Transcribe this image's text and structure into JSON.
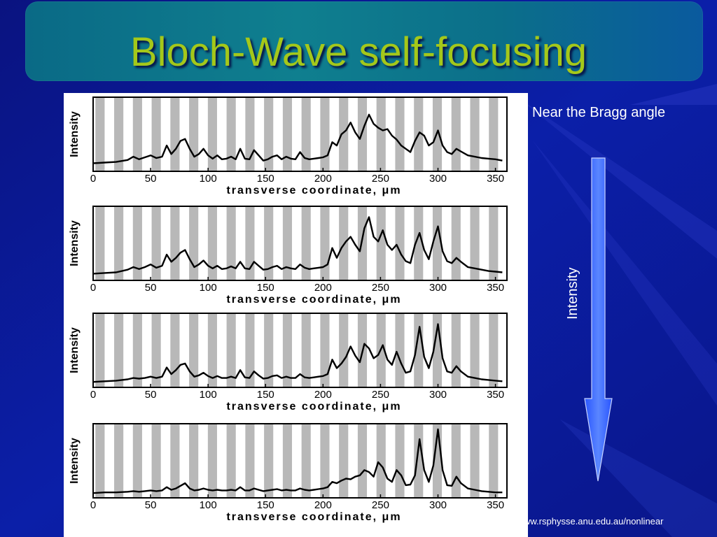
{
  "slide": {
    "title": "Bloch-Wave self-focusing",
    "caption": "Near the Bragg angle",
    "arrow_label": "Intensity",
    "url_text": "ww.rsphysse.anu.edu.au/nonlinear"
  },
  "colors": {
    "background": "#0a1a9c",
    "title_bar": "#0b7a8c",
    "title_text": "#a4c81a",
    "arrow": "#3a66ff"
  },
  "chart_data": [
    {
      "type": "line",
      "ylabel": "Intensity",
      "xlabel": "transverse coordinate, μm",
      "xticks": [
        "0",
        "50",
        "100",
        "150",
        "200",
        "250",
        "300",
        "350"
      ],
      "xlim": [
        0,
        360
      ],
      "ylim": [
        0,
        1
      ],
      "grid": "alternating gray stripes",
      "x": [
        0,
        10,
        20,
        30,
        35,
        40,
        45,
        50,
        55,
        60,
        64,
        68,
        72,
        76,
        80,
        84,
        88,
        92,
        96,
        100,
        104,
        108,
        112,
        116,
        120,
        124,
        128,
        132,
        136,
        140,
        144,
        148,
        152,
        156,
        160,
        164,
        168,
        172,
        176,
        180,
        184,
        188,
        192,
        196,
        200,
        204,
        208,
        212,
        216,
        220,
        224,
        228,
        232,
        236,
        240,
        244,
        248,
        252,
        256,
        260,
        264,
        268,
        272,
        276,
        280,
        284,
        288,
        292,
        296,
        300,
        304,
        308,
        312,
        316,
        320,
        326,
        332,
        338,
        344,
        350,
        356
      ],
      "values": [
        0.08,
        0.09,
        0.1,
        0.13,
        0.18,
        0.14,
        0.17,
        0.2,
        0.16,
        0.18,
        0.35,
        0.22,
        0.3,
        0.42,
        0.45,
        0.3,
        0.18,
        0.22,
        0.3,
        0.2,
        0.15,
        0.2,
        0.14,
        0.15,
        0.18,
        0.14,
        0.3,
        0.15,
        0.14,
        0.28,
        0.2,
        0.12,
        0.14,
        0.18,
        0.2,
        0.14,
        0.18,
        0.15,
        0.14,
        0.25,
        0.16,
        0.14,
        0.15,
        0.16,
        0.17,
        0.2,
        0.4,
        0.35,
        0.52,
        0.58,
        0.7,
        0.55,
        0.45,
        0.65,
        0.82,
        0.68,
        0.62,
        0.58,
        0.6,
        0.5,
        0.44,
        0.35,
        0.3,
        0.25,
        0.42,
        0.55,
        0.5,
        0.35,
        0.4,
        0.58,
        0.35,
        0.25,
        0.22,
        0.3,
        0.26,
        0.2,
        0.18,
        0.16,
        0.15,
        0.14,
        0.12
      ]
    },
    {
      "type": "line",
      "ylabel": "Intensity",
      "xlabel": "transverse coordinate, μm",
      "xticks": [
        "0",
        "50",
        "100",
        "150",
        "200",
        "250",
        "300",
        "350"
      ],
      "xlim": [
        0,
        360
      ],
      "ylim": [
        0,
        1
      ],
      "grid": "alternating gray stripes",
      "x": [
        0,
        10,
        20,
        30,
        35,
        40,
        45,
        50,
        55,
        60,
        64,
        68,
        72,
        76,
        80,
        84,
        88,
        92,
        96,
        100,
        104,
        108,
        112,
        116,
        120,
        124,
        128,
        132,
        136,
        140,
        144,
        148,
        152,
        156,
        160,
        164,
        168,
        172,
        176,
        180,
        184,
        188,
        192,
        196,
        200,
        204,
        208,
        212,
        216,
        220,
        224,
        228,
        232,
        236,
        240,
        244,
        248,
        252,
        256,
        260,
        264,
        268,
        272,
        276,
        280,
        284,
        288,
        292,
        296,
        300,
        304,
        308,
        312,
        316,
        320,
        326,
        332,
        338,
        344,
        350,
        356
      ],
      "values": [
        0.06,
        0.07,
        0.08,
        0.12,
        0.16,
        0.13,
        0.16,
        0.2,
        0.15,
        0.18,
        0.35,
        0.24,
        0.3,
        0.38,
        0.42,
        0.28,
        0.16,
        0.2,
        0.26,
        0.18,
        0.14,
        0.18,
        0.13,
        0.14,
        0.17,
        0.14,
        0.24,
        0.14,
        0.13,
        0.24,
        0.18,
        0.12,
        0.13,
        0.16,
        0.18,
        0.13,
        0.16,
        0.14,
        0.13,
        0.2,
        0.15,
        0.13,
        0.14,
        0.15,
        0.16,
        0.2,
        0.45,
        0.3,
        0.45,
        0.55,
        0.62,
        0.5,
        0.4,
        0.75,
        0.92,
        0.62,
        0.55,
        0.72,
        0.5,
        0.42,
        0.5,
        0.35,
        0.25,
        0.22,
        0.5,
        0.68,
        0.42,
        0.28,
        0.55,
        0.78,
        0.4,
        0.25,
        0.22,
        0.3,
        0.24,
        0.16,
        0.14,
        0.12,
        0.1,
        0.09,
        0.08
      ]
    },
    {
      "type": "line",
      "ylabel": "Intensity",
      "xlabel": "transverse coordinate, μm",
      "xticks": [
        "0",
        "50",
        "100",
        "150",
        "200",
        "250",
        "300",
        "350"
      ],
      "xlim": [
        0,
        360
      ],
      "ylim": [
        0,
        1
      ],
      "grid": "alternating gray stripes",
      "x": [
        0,
        10,
        20,
        30,
        35,
        40,
        45,
        50,
        55,
        60,
        64,
        68,
        72,
        76,
        80,
        84,
        88,
        92,
        96,
        100,
        104,
        108,
        112,
        116,
        120,
        124,
        128,
        132,
        136,
        140,
        144,
        148,
        152,
        156,
        160,
        164,
        168,
        172,
        176,
        180,
        184,
        188,
        192,
        196,
        200,
        204,
        208,
        212,
        216,
        220,
        224,
        228,
        232,
        236,
        240,
        244,
        248,
        252,
        256,
        260,
        264,
        268,
        272,
        276,
        280,
        284,
        288,
        292,
        296,
        300,
        304,
        308,
        312,
        316,
        320,
        326,
        332,
        338,
        344,
        350,
        356
      ],
      "values": [
        0.04,
        0.05,
        0.06,
        0.08,
        0.1,
        0.09,
        0.1,
        0.12,
        0.1,
        0.12,
        0.26,
        0.16,
        0.22,
        0.3,
        0.32,
        0.2,
        0.12,
        0.14,
        0.18,
        0.13,
        0.1,
        0.13,
        0.1,
        0.1,
        0.12,
        0.1,
        0.22,
        0.11,
        0.1,
        0.2,
        0.14,
        0.09,
        0.1,
        0.13,
        0.14,
        0.1,
        0.12,
        0.1,
        0.1,
        0.16,
        0.11,
        0.1,
        0.11,
        0.12,
        0.13,
        0.16,
        0.38,
        0.25,
        0.32,
        0.42,
        0.58,
        0.44,
        0.34,
        0.62,
        0.55,
        0.4,
        0.45,
        0.6,
        0.38,
        0.3,
        0.5,
        0.32,
        0.18,
        0.2,
        0.45,
        0.88,
        0.42,
        0.25,
        0.5,
        0.92,
        0.4,
        0.2,
        0.18,
        0.28,
        0.2,
        0.12,
        0.1,
        0.08,
        0.07,
        0.06,
        0.05
      ]
    },
    {
      "type": "line",
      "ylabel": "Intensity",
      "xlabel": "transverse coordinate, μm",
      "xticks": [
        "0",
        "50",
        "100",
        "150",
        "200",
        "250",
        "300",
        "350"
      ],
      "xlim": [
        0,
        360
      ],
      "ylim": [
        0,
        1
      ],
      "grid": "alternating gray stripes",
      "x": [
        0,
        10,
        20,
        30,
        35,
        40,
        45,
        50,
        55,
        60,
        64,
        68,
        72,
        76,
        80,
        84,
        88,
        92,
        96,
        100,
        104,
        108,
        112,
        116,
        120,
        124,
        128,
        132,
        136,
        140,
        144,
        148,
        152,
        156,
        160,
        164,
        168,
        172,
        176,
        180,
        184,
        188,
        192,
        196,
        200,
        204,
        208,
        212,
        216,
        220,
        224,
        228,
        232,
        236,
        240,
        244,
        248,
        252,
        256,
        260,
        264,
        268,
        272,
        276,
        280,
        284,
        288,
        292,
        296,
        300,
        304,
        308,
        312,
        316,
        320,
        326,
        332,
        338,
        344,
        350,
        356
      ],
      "values": [
        0.03,
        0.04,
        0.04,
        0.05,
        0.06,
        0.05,
        0.06,
        0.07,
        0.06,
        0.07,
        0.12,
        0.08,
        0.1,
        0.14,
        0.18,
        0.1,
        0.07,
        0.08,
        0.1,
        0.08,
        0.07,
        0.08,
        0.07,
        0.07,
        0.08,
        0.07,
        0.12,
        0.07,
        0.07,
        0.1,
        0.08,
        0.06,
        0.07,
        0.08,
        0.09,
        0.07,
        0.08,
        0.07,
        0.07,
        0.1,
        0.08,
        0.07,
        0.08,
        0.09,
        0.1,
        0.12,
        0.2,
        0.18,
        0.22,
        0.25,
        0.24,
        0.28,
        0.3,
        0.38,
        0.35,
        0.28,
        0.5,
        0.42,
        0.25,
        0.2,
        0.38,
        0.3,
        0.15,
        0.16,
        0.3,
        0.85,
        0.38,
        0.2,
        0.45,
        1.0,
        0.38,
        0.15,
        0.14,
        0.28,
        0.18,
        0.1,
        0.08,
        0.06,
        0.05,
        0.04,
        0.04
      ]
    }
  ]
}
